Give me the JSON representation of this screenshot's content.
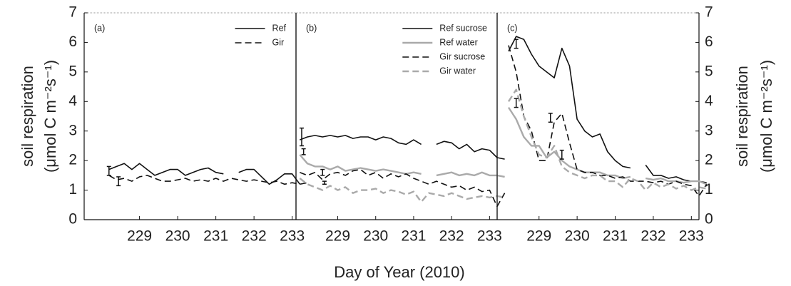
{
  "chart_data": [
    {
      "type": "line",
      "label": "(a)",
      "legend": "upper right",
      "xlim": [
        227.55,
        233.1
      ],
      "ylim": [
        0,
        7
      ],
      "xticks": [
        229,
        230,
        231,
        232,
        233
      ],
      "yticks": [
        0,
        1,
        2,
        3,
        4,
        5,
        6,
        7
      ],
      "yaxis_side": "left",
      "y_label": [
        "soil respiration",
        "(μmol C m⁻²s⁻¹)"
      ],
      "x": [
        228.2,
        228.4,
        228.6,
        228.8,
        229.0,
        229.2,
        229.4,
        229.6,
        229.8,
        230.0,
        230.2,
        230.4,
        230.6,
        230.8,
        231.0,
        231.2,
        231.4,
        231.6,
        231.8,
        232.0,
        232.2,
        232.4,
        232.6,
        232.8,
        233.0,
        233.2,
        233.4
      ],
      "series": [
        {
          "name": "Ref",
          "color": "#111111",
          "dashed": false,
          "values": [
            1.7,
            1.8,
            1.9,
            1.7,
            1.9,
            1.7,
            1.5,
            1.6,
            1.7,
            1.7,
            1.5,
            1.6,
            1.7,
            1.75,
            1.6,
            1.55,
            null,
            1.6,
            1.7,
            1.7,
            1.45,
            1.2,
            1.35,
            1.55,
            1.55,
            1.2,
            null
          ]
        },
        {
          "name": "Gir",
          "color": "#111111",
          "dashed": true,
          "values": [
            1.5,
            1.35,
            1.4,
            1.3,
            1.45,
            1.5,
            1.4,
            1.3,
            1.3,
            1.35,
            1.4,
            1.3,
            1.35,
            1.3,
            1.4,
            1.3,
            1.4,
            1.35,
            1.3,
            1.35,
            1.3,
            1.25,
            1.3,
            1.2,
            1.25,
            1.2,
            1.25
          ]
        }
      ],
      "error_bars": {
        "x": [
          228.2,
          228.45
        ],
        "values": [
          1.65,
          1.3
        ],
        "errors": [
          0.15,
          0.15
        ]
      }
    },
    {
      "type": "line",
      "label": "(b)",
      "legend": "upper right",
      "xlim": [
        227.9,
        233.2
      ],
      "ylim": [
        0,
        7
      ],
      "xticks": [
        229,
        230,
        231,
        232,
        233
      ],
      "x_label": "Day of Year (2010)",
      "x": [
        228.0,
        228.2,
        228.4,
        228.6,
        228.8,
        229.0,
        229.2,
        229.4,
        229.6,
        229.8,
        230.0,
        230.2,
        230.4,
        230.6,
        230.8,
        231.0,
        231.2,
        231.4,
        231.6,
        231.8,
        232.0,
        232.2,
        232.4,
        232.6,
        232.8,
        233.0,
        233.2,
        233.4
      ],
      "series": [
        {
          "name": "Ref sucrose",
          "color": "#111111",
          "dashed": false,
          "values": [
            2.7,
            2.8,
            2.85,
            2.8,
            2.85,
            2.8,
            2.85,
            2.75,
            2.8,
            2.8,
            2.7,
            2.8,
            2.75,
            2.6,
            2.55,
            2.7,
            2.55,
            null,
            2.55,
            2.65,
            2.6,
            2.4,
            2.55,
            2.3,
            2.4,
            2.35,
            2.1,
            2.05
          ]
        },
        {
          "name": "Ref water",
          "color": "#aaaaaa",
          "dashed": false,
          "values": [
            2.2,
            1.9,
            1.8,
            1.8,
            1.7,
            1.8,
            1.65,
            1.7,
            1.75,
            1.7,
            1.65,
            1.7,
            1.65,
            1.6,
            1.55,
            1.6,
            1.55,
            null,
            1.5,
            1.55,
            1.6,
            1.5,
            1.55,
            1.5,
            1.6,
            1.5,
            1.5,
            1.45
          ]
        },
        {
          "name": "Gir sucrose",
          "color": "#111111",
          "dashed": true,
          "values": [
            1.6,
            1.5,
            1.6,
            1.35,
            1.55,
            1.6,
            1.5,
            1.65,
            1.7,
            1.5,
            1.6,
            1.4,
            1.55,
            1.45,
            1.55,
            1.4,
            1.3,
            1.2,
            1.3,
            1.2,
            1.1,
            1.15,
            1.0,
            1.1,
            0.95,
            1.0,
            0.45,
            0.9
          ]
        },
        {
          "name": "Gir water",
          "color": "#aaaaaa",
          "dashed": true,
          "values": [
            1.4,
            1.2,
            1.1,
            1.0,
            1.15,
            1.0,
            1.1,
            0.9,
            1.0,
            1.0,
            1.05,
            0.9,
            1.0,
            0.95,
            0.85,
            0.95,
            0.6,
            0.9,
            0.85,
            0.8,
            0.9,
            0.8,
            0.7,
            0.75,
            0.8,
            0.75,
            0.8,
            0.75
          ]
        }
      ],
      "error_bars": {
        "x": [
          228.05,
          228.1,
          228.6,
          228.65
        ],
        "values": [
          2.8,
          2.3,
          1.6,
          1.25
        ],
        "errors": [
          0.3,
          0.1,
          0.1,
          0.05
        ]
      }
    },
    {
      "type": "line",
      "label": "(c)",
      "xlim": [
        227.9,
        233.2
      ],
      "ylim": [
        0,
        7
      ],
      "xticks": [
        229,
        230,
        231,
        232,
        233
      ],
      "yticks": [
        0,
        1,
        2,
        3,
        4,
        5,
        6,
        7
      ],
      "yaxis_side": "right",
      "y_label": [
        "soil respiration",
        "(μmol C m⁻²s⁻¹)"
      ],
      "x": [
        228.2,
        228.4,
        228.6,
        228.8,
        229.0,
        229.2,
        229.4,
        229.6,
        229.8,
        230.0,
        230.2,
        230.4,
        230.6,
        230.8,
        231.0,
        231.2,
        231.4,
        231.6,
        231.8,
        232.0,
        232.2,
        232.4,
        232.6,
        232.8,
        233.0,
        233.2,
        233.4
      ],
      "series": [
        {
          "name": "Ref sucrose",
          "color": "#111111",
          "dashed": false,
          "values": [
            5.7,
            6.2,
            6.1,
            5.6,
            5.2,
            5.0,
            4.8,
            5.8,
            5.2,
            3.4,
            3.0,
            2.8,
            2.9,
            2.3,
            2.0,
            1.8,
            1.75,
            null,
            1.85,
            1.5,
            1.5,
            1.4,
            1.45,
            1.35,
            1.3,
            1.3,
            1.25
          ]
        },
        {
          "name": "Ref water",
          "color": "#aaaaaa",
          "dashed": false,
          "values": [
            3.8,
            3.4,
            2.8,
            2.5,
            2.5,
            2.1,
            2.3,
            2.0,
            1.8,
            1.7,
            1.6,
            1.6,
            1.6,
            1.5,
            1.5,
            1.4,
            1.45,
            null,
            1.4,
            1.35,
            1.4,
            1.3,
            1.3,
            1.25,
            1.3,
            1.3,
            1.2
          ]
        },
        {
          "name": "Gir sucrose",
          "color": "#111111",
          "dashed": true,
          "values": [
            5.9,
            5.0,
            3.5,
            3.0,
            2.0,
            2.0,
            3.3,
            3.6,
            2.6,
            1.7,
            1.6,
            1.6,
            1.5,
            1.5,
            1.4,
            1.45,
            1.3,
            1.3,
            1.3,
            1.25,
            1.3,
            1.2,
            1.3,
            1.2,
            1.15,
            0.8,
            1.2
          ]
        },
        {
          "name": "Gir water",
          "color": "#aaaaaa",
          "dashed": true,
          "values": [
            4.0,
            4.4,
            3.5,
            2.8,
            2.2,
            2.1,
            2.5,
            1.8,
            1.6,
            1.5,
            1.4,
            1.5,
            1.5,
            1.3,
            1.3,
            1.1,
            1.4,
            1.3,
            1.0,
            1.25,
            1.1,
            1.2,
            1.05,
            1.15,
            1.0,
            1.1,
            1.05
          ]
        }
      ],
      "error_bars": {
        "x": [
          228.4,
          228.4,
          229.3,
          229.6
        ],
        "values": [
          5.95,
          3.95,
          3.45,
          2.2
        ],
        "errors": [
          0.15,
          0.15,
          0.15,
          0.15
        ]
      }
    }
  ]
}
